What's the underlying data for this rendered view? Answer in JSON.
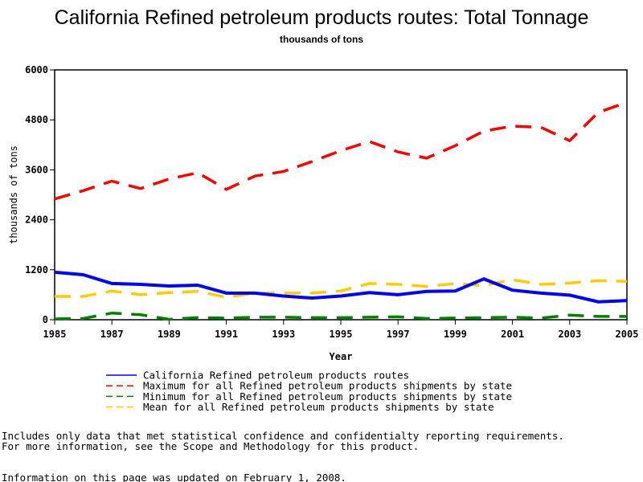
{
  "chart_data": {
    "type": "line",
    "title": "California Refined petroleum products routes: Total Tonnage",
    "subtitle": "thousands of tons",
    "xlabel": "Year",
    "ylabel": "thousands of tons",
    "xlim": [
      1985,
      2005
    ],
    "ylim": [
      0,
      6000
    ],
    "xticks": [
      "1985",
      "1987",
      "1989",
      "1991",
      "1993",
      "1995",
      "1997",
      "1999",
      "2001",
      "2003",
      "2005"
    ],
    "yticks": [
      "0",
      "1200",
      "2400",
      "3600",
      "4800",
      "6000"
    ],
    "grid": false,
    "legend_position": "bottom",
    "x": [
      1985,
      1986,
      1987,
      1988,
      1989,
      1990,
      1991,
      1992,
      1993,
      1994,
      1995,
      1996,
      1997,
      1998,
      1999,
      2000,
      2001,
      2002,
      2003,
      2004,
      2005
    ],
    "series": [
      {
        "name": "California Refined petroleum products routes",
        "color": "#0000ff",
        "style": "solid",
        "values": [
          1140,
          1080,
          870,
          850,
          810,
          830,
          640,
          640,
          570,
          520,
          570,
          650,
          600,
          680,
          690,
          980,
          710,
          640,
          590,
          430,
          460
        ]
      },
      {
        "name": "Maximum for all Refined petroleum products shipments by state",
        "color": "#ff0000",
        "style": "dashed",
        "values": [
          2900,
          3100,
          3330,
          3150,
          3380,
          3530,
          3130,
          3450,
          3560,
          3800,
          4060,
          4280,
          4030,
          3880,
          4180,
          4530,
          4650,
          4620,
          4300,
          4980,
          5220
        ]
      },
      {
        "name": "Minimum for all Refined petroleum products shipments by state",
        "color": "#008000",
        "style": "dashed",
        "values": [
          20,
          30,
          160,
          120,
          10,
          50,
          40,
          60,
          60,
          50,
          50,
          60,
          70,
          30,
          40,
          50,
          60,
          40,
          110,
          80,
          80
        ]
      },
      {
        "name": "Mean for all Refined petroleum products shipments by state",
        "color": "#ffcc00",
        "style": "dashed",
        "values": [
          560,
          560,
          690,
          600,
          650,
          680,
          540,
          640,
          640,
          640,
          690,
          870,
          850,
          800,
          870,
          820,
          960,
          850,
          880,
          940,
          920
        ]
      }
    ]
  },
  "footnotes": {
    "line1": "Includes only data that met statistical confidence and confidentialty reporting requirements.",
    "line2": "For more information, see the Scope and Methodology for this product.",
    "updated": "Information on this page was updated on February 1, 2008."
  }
}
